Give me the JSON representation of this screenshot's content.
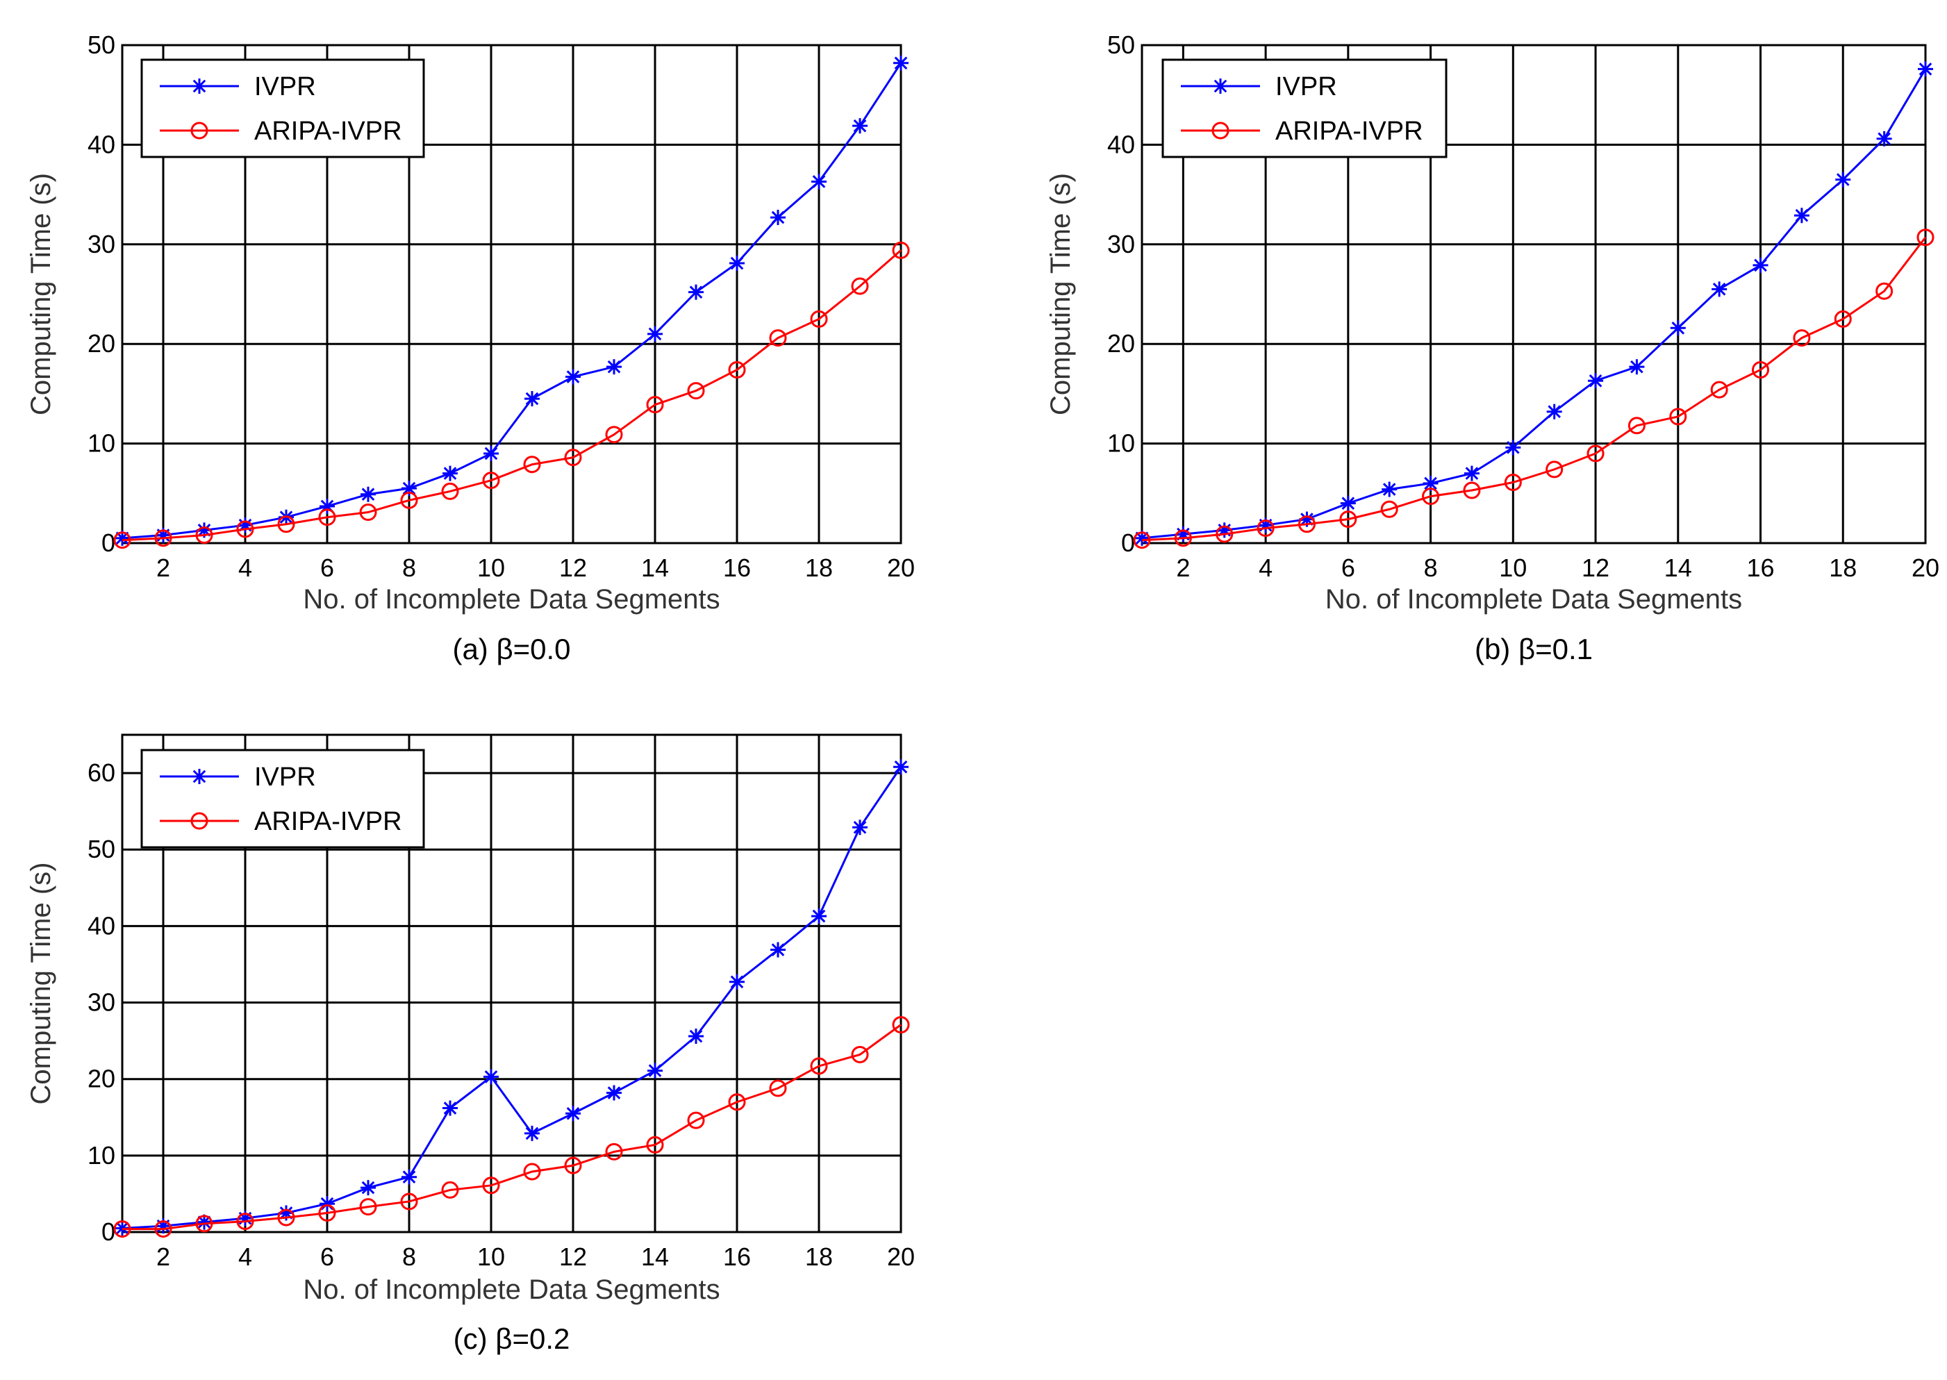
{
  "chart_data": [
    {
      "type": "line",
      "title": "",
      "caption": "(a) β=0.0",
      "xlabel": "No. of Incomplete Data Segments",
      "ylabel": "Computing Time (s)",
      "xlim": [
        1,
        20
      ],
      "ylim": [
        0,
        50
      ],
      "xticks": [
        2,
        4,
        6,
        8,
        10,
        12,
        14,
        16,
        18,
        20
      ],
      "yticks": [
        0,
        10,
        20,
        30,
        40,
        50
      ],
      "grid": true,
      "legend_position": "top-left",
      "x": [
        1,
        2,
        3,
        4,
        5,
        6,
        7,
        8,
        9,
        10,
        11,
        12,
        13,
        14,
        15,
        16,
        17,
        18,
        19,
        20
      ],
      "series": [
        {
          "name": "IVPR",
          "color": "#0000ff",
          "marker": "asterisk",
          "values": [
            0.5,
            0.8,
            1.3,
            1.8,
            2.6,
            3.7,
            4.9,
            5.5,
            7.0,
            9.0,
            14.5,
            16.7,
            17.7,
            21.0,
            25.2,
            28.1,
            32.7,
            36.3,
            41.9,
            48.2
          ]
        },
        {
          "name": "ARIPA-IVPR",
          "color": "#ff0000",
          "marker": "circle",
          "values": [
            0.3,
            0.5,
            0.8,
            1.4,
            1.9,
            2.6,
            3.1,
            4.3,
            5.2,
            6.3,
            7.9,
            8.6,
            10.9,
            13.9,
            15.3,
            17.4,
            20.6,
            22.5,
            25.8,
            29.4
          ]
        }
      ]
    },
    {
      "type": "line",
      "title": "",
      "caption": "(b) β=0.1",
      "xlabel": "No. of Incomplete Data Segments",
      "ylabel": "Computing Time (s)",
      "xlim": [
        1,
        20
      ],
      "ylim": [
        0,
        50
      ],
      "xticks": [
        2,
        4,
        6,
        8,
        10,
        12,
        14,
        16,
        18,
        20
      ],
      "yticks": [
        0,
        10,
        20,
        30,
        40,
        50
      ],
      "grid": true,
      "legend_position": "top-left",
      "x": [
        1,
        2,
        3,
        4,
        5,
        6,
        7,
        8,
        9,
        10,
        11,
        12,
        13,
        14,
        15,
        16,
        17,
        18,
        19,
        20
      ],
      "series": [
        {
          "name": "IVPR",
          "color": "#0000ff",
          "marker": "asterisk",
          "values": [
            0.5,
            0.9,
            1.3,
            1.8,
            2.4,
            4.0,
            5.4,
            6.0,
            7.0,
            9.6,
            13.2,
            16.3,
            17.7,
            21.6,
            25.5,
            27.9,
            32.9,
            36.5,
            40.6,
            47.6
          ]
        },
        {
          "name": "ARIPA-IVPR",
          "color": "#ff0000",
          "marker": "circle",
          "values": [
            0.3,
            0.5,
            0.9,
            1.5,
            1.9,
            2.4,
            3.4,
            4.7,
            5.3,
            6.1,
            7.4,
            9.0,
            11.8,
            12.7,
            15.4,
            17.4,
            20.6,
            22.5,
            25.3,
            30.7
          ]
        }
      ]
    },
    {
      "type": "line",
      "title": "",
      "caption": "(c) β=0.2",
      "xlabel": "No. of Incomplete Data Segments",
      "ylabel": "Computing Time (s)",
      "xlim": [
        1,
        20
      ],
      "ylim": [
        0,
        65
      ],
      "xticks": [
        2,
        4,
        6,
        8,
        10,
        12,
        14,
        16,
        18,
        20
      ],
      "yticks": [
        0,
        10,
        20,
        30,
        40,
        50,
        60
      ],
      "grid": true,
      "legend_position": "top-left",
      "x": [
        1,
        2,
        3,
        4,
        5,
        6,
        7,
        8,
        9,
        10,
        11,
        12,
        13,
        14,
        15,
        16,
        17,
        18,
        19,
        20
      ],
      "series": [
        {
          "name": "IVPR",
          "color": "#0000ff",
          "marker": "asterisk",
          "values": [
            0.5,
            0.8,
            1.3,
            1.8,
            2.5,
            3.7,
            5.8,
            7.2,
            16.2,
            20.3,
            12.9,
            15.5,
            18.2,
            21.1,
            25.6,
            32.7,
            36.9,
            41.3,
            52.9,
            60.8
          ]
        },
        {
          "name": "ARIPA-IVPR",
          "color": "#ff0000",
          "marker": "circle",
          "values": [
            0.4,
            0.4,
            1.1,
            1.4,
            1.9,
            2.5,
            3.3,
            4.0,
            5.5,
            6.1,
            7.9,
            8.7,
            10.5,
            11.4,
            14.6,
            17.0,
            18.8,
            21.7,
            23.2,
            27.1
          ]
        }
      ]
    }
  ]
}
